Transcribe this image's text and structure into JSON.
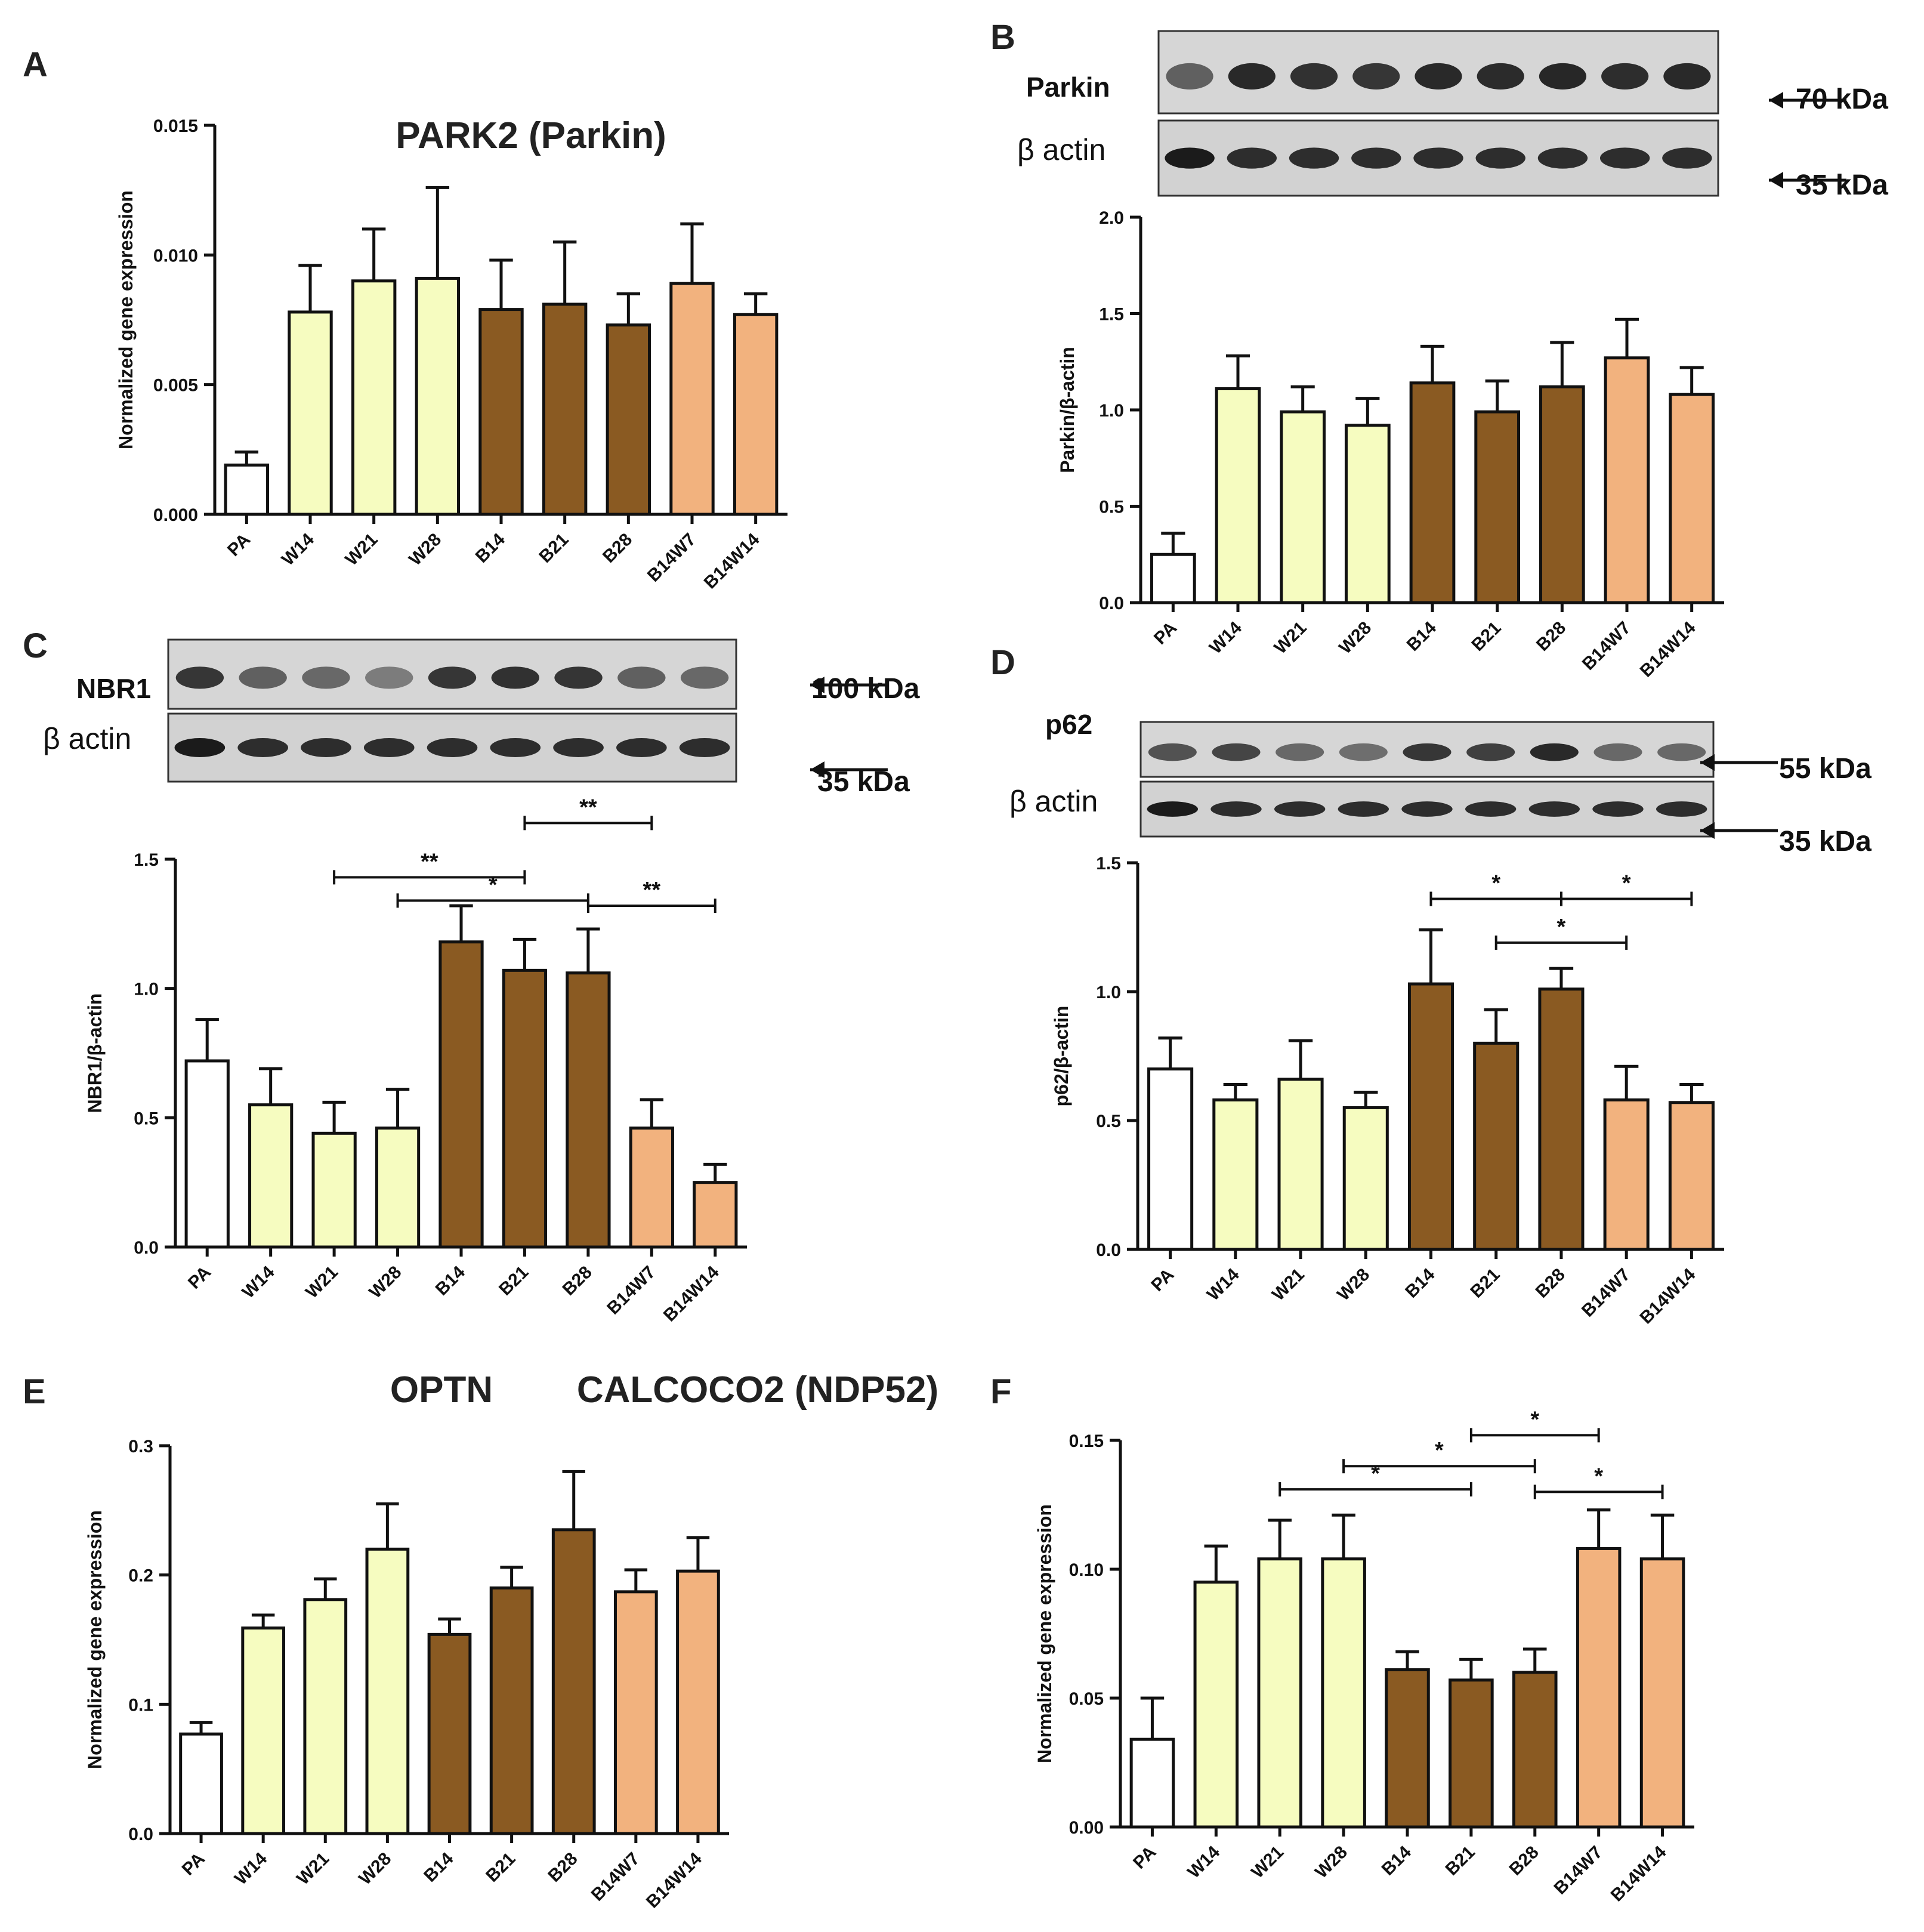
{
  "colors": {
    "PA": "#ffffff",
    "W": "#f6fcc0",
    "B": "#8a5a22",
    "BW": "#f2b27e",
    "axis": "#111111"
  },
  "categories": [
    "PA",
    "W14",
    "W21",
    "W28",
    "B14",
    "B21",
    "B28",
    "B14W7",
    "B14W14"
  ],
  "chart_data": [
    {
      "panel": "A",
      "type": "bar",
      "title": "PARK2 (Parkin)",
      "ylabel": "Normalized gene expression",
      "categories": [
        "PA",
        "W14",
        "W21",
        "W28",
        "B14",
        "B21",
        "B28",
        "B14W7",
        "B14W14"
      ],
      "values": [
        0.0019,
        0.0078,
        0.009,
        0.0091,
        0.0079,
        0.0081,
        0.0073,
        0.0089,
        0.0077
      ],
      "errors": [
        0.0005,
        0.0018,
        0.002,
        0.0035,
        0.0019,
        0.0024,
        0.0012,
        0.0023,
        0.0008
      ],
      "ylim": [
        0,
        0.015
      ],
      "yticks": [
        0,
        0.005,
        0.01,
        0.015
      ],
      "yticklabels": [
        "0.000",
        "0.005",
        "0.010",
        "0.015"
      ],
      "significance": []
    },
    {
      "panel": "B",
      "type": "bar",
      "title": "",
      "ylabel": "Parkin/β-actin",
      "categories": [
        "PA",
        "W14",
        "W21",
        "W28",
        "B14",
        "B21",
        "B28",
        "B14W7",
        "B14W14"
      ],
      "values": [
        0.25,
        1.11,
        0.99,
        0.92,
        1.14,
        0.99,
        1.12,
        1.27,
        1.08
      ],
      "errors": [
        0.11,
        0.17,
        0.13,
        0.14,
        0.19,
        0.16,
        0.23,
        0.2,
        0.14
      ],
      "ylim": [
        0,
        2.0
      ],
      "yticks": [
        0,
        0.5,
        1.0,
        1.5,
        2.0
      ],
      "yticklabels": [
        "0.0",
        "0.5",
        "1.0",
        "1.5",
        "2.0"
      ],
      "significance": [],
      "blot": {
        "rows": [
          "Parkin",
          "β actin"
        ],
        "markers": [
          "70 kDa",
          "35 kDa"
        ]
      }
    },
    {
      "panel": "C",
      "type": "bar",
      "title": "",
      "ylabel": "NBR1/β-actin",
      "categories": [
        "PA",
        "W14",
        "W21",
        "W28",
        "B14",
        "B21",
        "B28",
        "B14W7",
        "B14W14"
      ],
      "values": [
        0.72,
        0.55,
        0.44,
        0.46,
        1.18,
        1.07,
        1.06,
        0.46,
        0.25
      ],
      "errors": [
        0.16,
        0.14,
        0.12,
        0.15,
        0.14,
        0.12,
        0.17,
        0.11,
        0.07
      ],
      "ylim": [
        0,
        1.5
      ],
      "yticks": [
        0,
        0.5,
        1.0,
        1.5
      ],
      "yticklabels": [
        "0.0",
        "0.5",
        "1.0",
        "1.5"
      ],
      "significance": [
        {
          "from": "W21",
          "to": "B21",
          "label": "**",
          "y": 1.43
        },
        {
          "from": "B21",
          "to": "B14W7",
          "label": "**",
          "y": 1.64
        },
        {
          "from": "W28",
          "to": "B28",
          "label": "*",
          "y": 1.34
        },
        {
          "from": "B28",
          "to": "B14W14",
          "label": "**",
          "y": 1.32
        }
      ],
      "blot": {
        "rows": [
          "NBR1",
          "β actin"
        ],
        "markers": [
          "100 kDa",
          "35 kDa"
        ]
      }
    },
    {
      "panel": "D",
      "type": "bar",
      "title": "",
      "ylabel": "p62/β-actin",
      "categories": [
        "PA",
        "W14",
        "W21",
        "W28",
        "B14",
        "B21",
        "B28",
        "B14W7",
        "B14W14"
      ],
      "values": [
        0.7,
        0.58,
        0.66,
        0.55,
        1.03,
        0.8,
        1.01,
        0.58,
        0.57
      ],
      "errors": [
        0.12,
        0.06,
        0.15,
        0.06,
        0.21,
        0.13,
        0.08,
        0.13,
        0.07
      ],
      "ylim": [
        0,
        1.5
      ],
      "yticks": [
        0,
        0.5,
        1.0,
        1.5
      ],
      "yticklabels": [
        "0.0",
        "0.5",
        "1.0",
        "1.5"
      ],
      "significance": [
        {
          "from": "B14",
          "to": "B28",
          "label": "*",
          "y": 1.36
        },
        {
          "from": "B28",
          "to": "B14W14",
          "label": "*",
          "y": 1.36
        },
        {
          "from": "B21",
          "to": "B14W7",
          "label": "*",
          "y": 1.19
        }
      ],
      "blot": {
        "rows": [
          "p62",
          "β actin"
        ],
        "markers": [
          "55 kDa",
          "35 kDa"
        ]
      }
    },
    {
      "panel": "E",
      "type": "bar",
      "title": "OPTN",
      "ylabel": "Normalized gene expression",
      "categories": [
        "PA",
        "W14",
        "W21",
        "W28",
        "B14",
        "B21",
        "B28",
        "B14W7",
        "B14W14"
      ],
      "values": [
        0.077,
        0.159,
        0.181,
        0.22,
        0.154,
        0.19,
        0.235,
        0.187,
        0.203
      ],
      "errors": [
        0.009,
        0.01,
        0.016,
        0.035,
        0.012,
        0.016,
        0.045,
        0.017,
        0.026
      ],
      "ylim": [
        0,
        0.3
      ],
      "yticks": [
        0,
        0.1,
        0.2,
        0.3
      ],
      "yticklabels": [
        "0.0",
        "0.1",
        "0.2",
        "0.3"
      ],
      "significance": []
    },
    {
      "panel": "F",
      "type": "bar",
      "title": "CALCOCO2 (NDP52)",
      "ylabel": "Normalized gene expression",
      "categories": [
        "PA",
        "W14",
        "W21",
        "W28",
        "B14",
        "B21",
        "B28",
        "B14W7",
        "B14W14"
      ],
      "values": [
        0.034,
        0.095,
        0.104,
        0.104,
        0.061,
        0.057,
        0.06,
        0.108,
        0.104
      ],
      "errors": [
        0.016,
        0.014,
        0.015,
        0.017,
        0.007,
        0.008,
        0.009,
        0.015,
        0.017
      ],
      "ylim": [
        0,
        0.15
      ],
      "yticks": [
        0,
        0.05,
        0.1,
        0.15
      ],
      "yticklabels": [
        "0.00",
        "0.05",
        "0.10",
        "0.15"
      ],
      "significance": [
        {
          "from": "W21",
          "to": "B21",
          "label": "*",
          "y": 0.131
        },
        {
          "from": "W28",
          "to": "B28",
          "label": "*",
          "y": 0.14
        },
        {
          "from": "B21",
          "to": "B14W7",
          "label": "*",
          "y": 0.152
        },
        {
          "from": "B28",
          "to": "B14W14",
          "label": "*",
          "y": 0.13
        }
      ]
    }
  ]
}
